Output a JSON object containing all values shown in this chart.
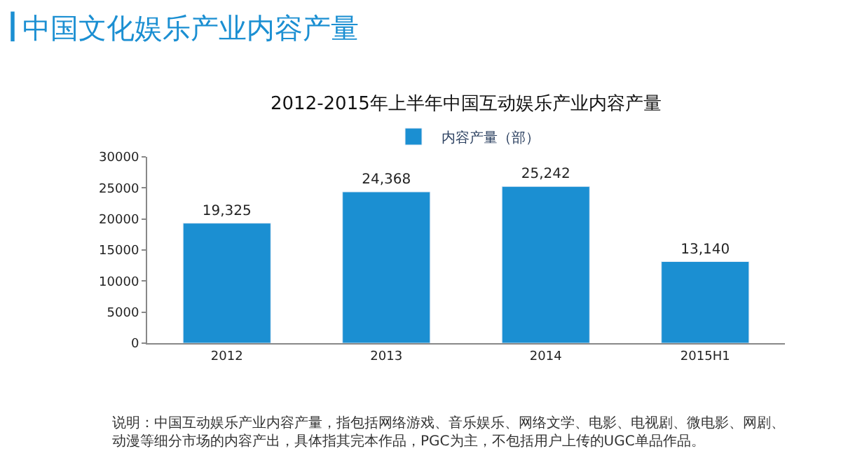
{
  "chart_data": {
    "type": "bar",
    "title": "中国文化娱乐产业内容产量",
    "subtitle": "2012-2015年上半年中国互动娱乐产业内容产量",
    "categories": [
      "2012",
      "2013",
      "2014",
      "2015H1"
    ],
    "series": [
      {
        "name": "内容产量（部）",
        "color": "#1b8fd2",
        "values": [
          19325,
          24368,
          25242,
          13140
        ]
      }
    ],
    "value_labels": [
      "19,325",
      "24,368",
      "25,242",
      "13,140"
    ],
    "ylim": [
      0,
      30000
    ],
    "yticks": [
      0,
      5000,
      10000,
      15000,
      20000,
      25000,
      30000
    ],
    "legend": "top",
    "annotations": [
      "说明：中国互动娱乐产业内容产量，指包括网络游戏、音乐娱乐、网络文学、电影、电视剧、微电影、网剧、动漫等细分市场的内容产出，具体指其完本作品，PGC为主，不包括用户上传的UGC单品作品。"
    ]
  }
}
